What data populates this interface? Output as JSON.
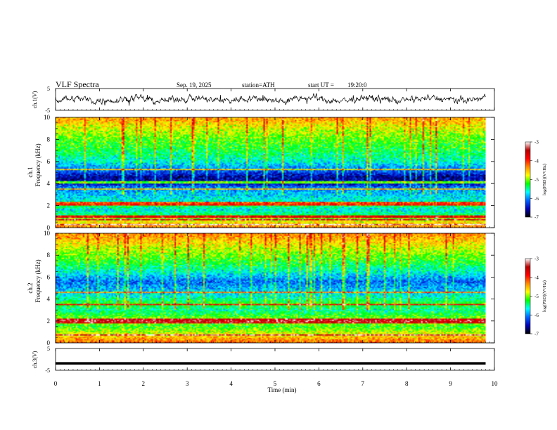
{
  "header": {
    "title": "VLF Spectra",
    "date": "Sep. 19, 2025",
    "station": "station=ATH",
    "start_label": "start UT =",
    "start_time": "19:20:0"
  },
  "colors": {
    "colormap": [
      "#ffffff",
      "#b40000",
      "#ff0000",
      "#ff8c00",
      "#ffff00",
      "#00ff00",
      "#00ffff",
      "#0064ff",
      "#0000b4",
      "#000000"
    ],
    "trace": "#000000"
  },
  "chart_data": [
    {
      "id": "ch1-waveform",
      "type": "line",
      "ylabel": "ch.1(V)",
      "ylim": [
        -5,
        5
      ],
      "yticks": [
        "5",
        "-5"
      ],
      "xlim": [
        0,
        10
      ],
      "description_series": "noisy signal oscillating roughly between -3 and 3 V over 0-9.8 min"
    },
    {
      "id": "ch1-spectrogram",
      "type": "heatmap",
      "ylabel_channel": "ch.1",
      "ylabel": "Frequency (kHz)",
      "ylim": [
        0,
        10
      ],
      "yticks": [
        "0",
        "2",
        "4",
        "6",
        "8",
        "10"
      ],
      "xlim": [
        0,
        10
      ],
      "colorbar": {
        "label": "log(PSD)(V²/Hz)",
        "range": [
          -7,
          -3
        ],
        "ticks": [
          "-3",
          "-4",
          "-5",
          "-6",
          "-7"
        ]
      },
      "profile": [
        {
          "f": 0.0,
          "v": -4.3
        },
        {
          "f": 0.4,
          "v": -4.6
        },
        {
          "f": 0.8,
          "v": -4.9
        },
        {
          "f": 1.2,
          "v": -5.4
        },
        {
          "f": 1.6,
          "v": -5.7
        },
        {
          "f": 2.0,
          "v": -5.3
        },
        {
          "f": 2.4,
          "v": -5.6
        },
        {
          "f": 3.0,
          "v": -5.8
        },
        {
          "f": 3.6,
          "v": -6.0
        },
        {
          "f": 4.0,
          "v": -6.5
        },
        {
          "f": 4.6,
          "v": -6.6
        },
        {
          "f": 5.2,
          "v": -6.1
        },
        {
          "f": 6.0,
          "v": -5.6
        },
        {
          "f": 7.0,
          "v": -5.3
        },
        {
          "f": 8.0,
          "v": -5.1
        },
        {
          "f": 9.0,
          "v": -4.8
        },
        {
          "f": 10.0,
          "v": -4.4
        }
      ],
      "lines_khz": [
        0.3,
        0.7,
        1.0,
        2.1,
        2.25,
        3.5,
        4.1,
        5.3
      ]
    },
    {
      "id": "ch2-spectrogram",
      "type": "heatmap",
      "ylabel_channel": "ch.2",
      "ylabel": "Frequency (kHz)",
      "ylim": [
        0,
        10
      ],
      "yticks": [
        "0",
        "2",
        "4",
        "6",
        "8",
        "10"
      ],
      "xlim": [
        0,
        10
      ],
      "colorbar": {
        "label": "log(PSD)(V²/Hz)",
        "range": [
          -7,
          -3
        ],
        "ticks": [
          "-3",
          "-4",
          "-5",
          "-6",
          "-7"
        ]
      },
      "profile": [
        {
          "f": 0.0,
          "v": -4.2
        },
        {
          "f": 0.5,
          "v": -4.5
        },
        {
          "f": 1.0,
          "v": -4.9
        },
        {
          "f": 1.5,
          "v": -5.2
        },
        {
          "f": 2.0,
          "v": -4.8
        },
        {
          "f": 2.5,
          "v": -5.2
        },
        {
          "f": 3.0,
          "v": -5.5
        },
        {
          "f": 3.6,
          "v": -5.2
        },
        {
          "f": 4.2,
          "v": -5.6
        },
        {
          "f": 5.0,
          "v": -5.9
        },
        {
          "f": 5.6,
          "v": -6.1
        },
        {
          "f": 6.5,
          "v": -5.6
        },
        {
          "f": 7.5,
          "v": -5.2
        },
        {
          "f": 8.5,
          "v": -4.9
        },
        {
          "f": 10.0,
          "v": -4.3
        }
      ],
      "lines_khz": [
        0.7,
        1.9,
        2.1,
        3.5,
        4.6
      ]
    },
    {
      "id": "ch3-waveform",
      "type": "line",
      "ylabel": "ch.3(V)",
      "ylim": [
        -5,
        5
      ],
      "yticks": [
        "5",
        "-5"
      ],
      "xlim": [
        0,
        10
      ],
      "constant_value": -1.8
    }
  ],
  "xaxis": {
    "label": "Time (min)",
    "ticks": [
      "0",
      "1",
      "2",
      "3",
      "4",
      "5",
      "6",
      "7",
      "8",
      "9",
      "10"
    ],
    "data_end_min": 9.8
  }
}
